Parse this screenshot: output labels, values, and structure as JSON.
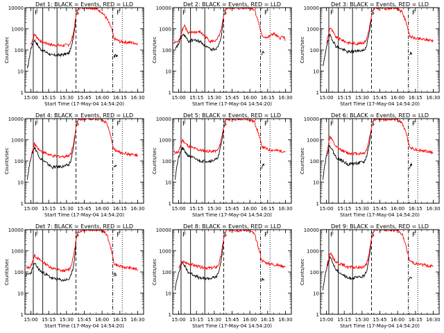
{
  "chart_data": {
    "type": "line",
    "layout": "3x3 grid of panels",
    "xlabel": "Start Time (17-May-04 14:54:20)",
    "ylabel": "Counts/sec",
    "x_tick_labels": [
      "15:00",
      "15:15",
      "15:30",
      "15:45",
      "16:00",
      "16:15",
      "16:30"
    ],
    "x_tick_minutes": [
      0,
      15,
      30,
      45,
      60,
      75,
      90
    ],
    "xlim_minutes": [
      -5,
      95
    ],
    "y_scale": "log",
    "ylim": [
      1,
      10000
    ],
    "y_tick_labels": [
      "1",
      "10",
      "100",
      "1000",
      "10000"
    ],
    "series_legend": "BLACK = Events, RED = LLD",
    "series_colors": {
      "events": "#000000",
      "lld": "#ff0000"
    },
    "vertical_lines_minutes": {
      "solid": [
        2,
        10,
        22
      ],
      "dashed": 38,
      "dash_dot": 69,
      "dotted": 77
    },
    "panels": [
      {
        "title": "Det 1: BLACK = Events, RED = LLD",
        "markers": [
          "F",
          "S",
          "F"
        ],
        "x": [
          0,
          3,
          8,
          18,
          27,
          32,
          34,
          36,
          38,
          40,
          42,
          45,
          50,
          55,
          60,
          64,
          68,
          70,
          75,
          85,
          90
        ],
        "lld": [
          180,
          550,
          260,
          170,
          160,
          180,
          250,
          700,
          4000,
          9000,
          10000,
          10000,
          10000,
          9000,
          6000,
          3000,
          1000,
          350,
          250,
          220,
          200
        ],
        "events_x": [
          -3,
          -2,
          0,
          3,
          8,
          18,
          27,
          32,
          34,
          36,
          38,
          70,
          71,
          72,
          73
        ],
        "events": [
          12,
          25,
          120,
          300,
          110,
          55,
          60,
          70,
          130,
          500,
          3000,
          40,
          60,
          55,
          50
        ]
      },
      {
        "title": "Det 2: BLACK = Events, RED = LLD",
        "markers": [
          "F",
          "S",
          "F"
        ],
        "x": [
          -4,
          0,
          3,
          5,
          8,
          12,
          18,
          27,
          32,
          34,
          36,
          38,
          40,
          45,
          50,
          55,
          60,
          64,
          68,
          70,
          75,
          80,
          85,
          88,
          90
        ],
        "lld": [
          220,
          250,
          900,
          1500,
          600,
          700,
          700,
          250,
          280,
          450,
          900,
          4000,
          9000,
          10000,
          9000,
          10000,
          10000,
          8000,
          1500,
          450,
          380,
          600,
          350,
          450,
          300
        ],
        "events_x": [
          -3,
          0,
          3,
          5,
          8,
          12,
          18,
          27,
          32,
          34,
          36,
          38,
          70,
          71,
          72
        ],
        "events": [
          100,
          200,
          500,
          500,
          250,
          300,
          250,
          100,
          120,
          200,
          500,
          3000,
          50,
          80,
          70
        ]
      },
      {
        "title": "Det 3: BLACK = Events, RED = LLD",
        "markers": [
          "F",
          "S",
          "F"
        ],
        "x": [
          0,
          3,
          8,
          18,
          27,
          32,
          34,
          36,
          38,
          40,
          45,
          50,
          55,
          60,
          64,
          68,
          70,
          75,
          85,
          90
        ],
        "lld": [
          200,
          1200,
          400,
          220,
          200,
          230,
          350,
          1000,
          4000,
          9000,
          10000,
          9000,
          10000,
          9000,
          6000,
          1500,
          450,
          350,
          300,
          280
        ],
        "events_x": [
          -3,
          -2,
          0,
          3,
          8,
          18,
          27,
          32,
          34,
          36,
          38,
          70,
          71,
          72
        ],
        "events": [
          15,
          30,
          150,
          500,
          150,
          80,
          90,
          100,
          180,
          600,
          3000,
          50,
          70,
          60
        ]
      },
      {
        "title": "Det 4: BLACK = Events, RED = LLD",
        "markers": [
          "F",
          "S",
          "F"
        ],
        "x": [
          0,
          3,
          8,
          18,
          27,
          32,
          34,
          36,
          38,
          40,
          45,
          50,
          55,
          60,
          64,
          68,
          70,
          75,
          85,
          90
        ],
        "lld": [
          150,
          650,
          300,
          170,
          160,
          180,
          250,
          700,
          4000,
          9000,
          10000,
          10000,
          10000,
          9000,
          6000,
          1000,
          350,
          250,
          200,
          180
        ],
        "events_x": [
          -3,
          -2,
          0,
          3,
          8,
          18,
          27,
          32,
          34,
          36,
          38,
          70,
          71,
          72
        ],
        "events": [
          15,
          35,
          150,
          450,
          130,
          50,
          55,
          65,
          120,
          500,
          3000,
          50,
          60,
          55
        ]
      },
      {
        "title": "Det 5: BLACK = Events, RED = LLD",
        "markers": [
          "F",
          "S",
          "F"
        ],
        "x": [
          -4,
          0,
          3,
          8,
          18,
          27,
          32,
          34,
          36,
          38,
          40,
          45,
          50,
          55,
          60,
          64,
          68,
          70,
          75,
          85,
          90
        ],
        "lld": [
          250,
          260,
          1000,
          500,
          320,
          280,
          300,
          400,
          1200,
          4000,
          9000,
          10000,
          9000,
          10000,
          9000,
          7000,
          1500,
          500,
          350,
          300,
          280
        ],
        "events_x": [
          -3,
          -2,
          0,
          3,
          8,
          18,
          27,
          32,
          34,
          36,
          38,
          70,
          71,
          72
        ],
        "events": [
          15,
          40,
          150,
          400,
          180,
          100,
          100,
          120,
          200,
          700,
          3000,
          50,
          70,
          60
        ]
      },
      {
        "title": "Det 6: BLACK = Events, RED = LLD",
        "markers": [
          "F",
          "S",
          "F"
        ],
        "x": [
          0,
          3,
          8,
          18,
          27,
          32,
          34,
          36,
          38,
          40,
          45,
          50,
          55,
          60,
          64,
          68,
          70,
          75,
          85,
          90
        ],
        "lld": [
          200,
          1500,
          450,
          230,
          220,
          240,
          350,
          1000,
          4000,
          9000,
          10000,
          9000,
          10000,
          9000,
          6000,
          1500,
          450,
          350,
          280,
          250
        ],
        "events_x": [
          -3,
          -2,
          0,
          3,
          8,
          18,
          27,
          32,
          34,
          36,
          38,
          70,
          71,
          72
        ],
        "events": [
          15,
          40,
          180,
          550,
          150,
          70,
          80,
          90,
          180,
          600,
          3000,
          50,
          70,
          60
        ]
      },
      {
        "title": "Det 7: BLACK = Events, RED = LLD",
        "markers": [
          "F",
          "S",
          "F"
        ],
        "x": [
          -4,
          0,
          3,
          8,
          18,
          27,
          32,
          34,
          36,
          38,
          40,
          45,
          50,
          55,
          60,
          64,
          68,
          70,
          75,
          85,
          90
        ],
        "lld": [
          150,
          180,
          600,
          350,
          150,
          110,
          130,
          200,
          600,
          3000,
          8000,
          10000,
          10000,
          10000,
          9000,
          6000,
          1000,
          250,
          180,
          150,
          130
        ],
        "events_x": [
          -4,
          0,
          3,
          8,
          18,
          27,
          32,
          34,
          36,
          38,
          70,
          71,
          72
        ],
        "events": [
          70,
          90,
          250,
          110,
          50,
          40,
          45,
          70,
          200,
          2000,
          70,
          80,
          75
        ]
      },
      {
        "title": "Det 8: BLACK = Events, RED = LLD",
        "markers": [
          "F",
          "S",
          "F"
        ],
        "x": [
          0,
          3,
          8,
          18,
          27,
          32,
          34,
          36,
          38,
          40,
          45,
          50,
          55,
          60,
          64,
          68,
          70,
          75,
          85,
          90
        ],
        "lld": [
          150,
          300,
          250,
          170,
          150,
          170,
          250,
          700,
          4000,
          9000,
          10000,
          9000,
          10000,
          9000,
          6000,
          1000,
          350,
          250,
          200,
          180
        ],
        "events_x": [
          -3,
          -2,
          0,
          3,
          8,
          18,
          27,
          32,
          34,
          36,
          38,
          70,
          71,
          72
        ],
        "events": [
          15,
          30,
          100,
          300,
          100,
          50,
          50,
          60,
          110,
          400,
          3000,
          40,
          50,
          45
        ]
      },
      {
        "title": "Det 9: BLACK = Events, RED = LLD",
        "markers": [
          "F",
          "S",
          "F"
        ],
        "x": [
          0,
          3,
          8,
          18,
          27,
          32,
          34,
          36,
          38,
          40,
          45,
          50,
          55,
          60,
          64,
          68,
          70,
          75,
          85,
          90
        ],
        "lld": [
          150,
          800,
          300,
          170,
          160,
          180,
          250,
          700,
          4000,
          9000,
          10000,
          10000,
          10000,
          9000,
          6000,
          1000,
          350,
          250,
          200,
          180
        ],
        "events_x": [
          -3,
          -2,
          0,
          3,
          8,
          18,
          27,
          32,
          34,
          36,
          38,
          70,
          71,
          72
        ],
        "events": [
          15,
          35,
          150,
          500,
          130,
          50,
          55,
          65,
          120,
          500,
          3000,
          50,
          60,
          55
        ]
      }
    ]
  }
}
